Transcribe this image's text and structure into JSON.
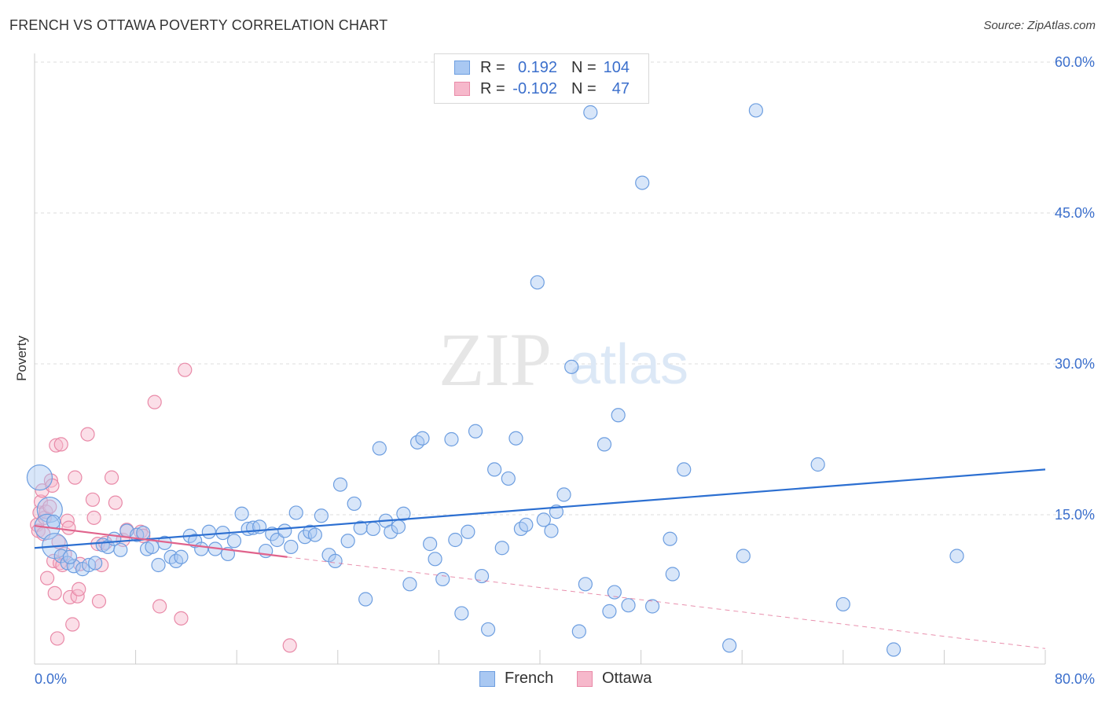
{
  "header": {
    "title": "FRENCH VS OTTAWA POVERTY CORRELATION CHART",
    "source": "Source: ZipAtlas.com"
  },
  "watermark": {
    "zip": "ZIP",
    "atlas": "atlas"
  },
  "legend": {
    "rows": [
      {
        "r_label": "R =",
        "r_value": "0.192",
        "n_label": "N =",
        "n_value": "104"
      },
      {
        "r_label": "R =",
        "r_value": "-0.102",
        "n_label": "N =",
        "n_value": "47"
      }
    ]
  },
  "bottom_legend": {
    "french": "French",
    "ottawa": "Ottawa"
  },
  "colors": {
    "french_fill": "#a9c8f2",
    "french_stroke": "#6d9ee0",
    "french_line": "#2c6fd1",
    "ottawa_fill": "#f6b8cb",
    "ottawa_stroke": "#e98aa8",
    "ottawa_line": "#e0638c",
    "axis_text": "#3b6fcc",
    "grid": "#dedede"
  },
  "chart_data": {
    "type": "scatter",
    "title": "FRENCH VS OTTAWA POVERTY CORRELATION CHART",
    "xlabel": "",
    "ylabel": "Poverty",
    "xlim": [
      0,
      80
    ],
    "ylim": [
      0,
      63
    ],
    "x_tick_labels": [
      "0.0%",
      "80.0%"
    ],
    "y_ticks": [
      15,
      30,
      45,
      60
    ],
    "y_tick_labels": [
      "15.0%",
      "30.0%",
      "45.0%",
      "60.0%"
    ],
    "grid": true,
    "legend_position": "top-center",
    "series": [
      {
        "name": "French",
        "r": 0.192,
        "n": 104,
        "trend": {
          "x": [
            0,
            80
          ],
          "y": [
            11.7,
            19.5
          ]
        },
        "points": [
          {
            "x": 0.4,
            "y": 18.7,
            "big": true
          },
          {
            "x": 1.2,
            "y": 15.5,
            "big": true
          },
          {
            "x": 1.0,
            "y": 13.8,
            "big": true
          },
          {
            "x": 1.6,
            "y": 11.9,
            "big": true
          },
          {
            "x": 1.5,
            "y": 14.3
          },
          {
            "x": 2.1,
            "y": 10.9
          },
          {
            "x": 2.6,
            "y": 10.2
          },
          {
            "x": 3.1,
            "y": 9.9
          },
          {
            "x": 3.8,
            "y": 9.6
          },
          {
            "x": 4.3,
            "y": 10.0
          },
          {
            "x": 4.8,
            "y": 10.2
          },
          {
            "x": 5.4,
            "y": 12.0
          },
          {
            "x": 5.8,
            "y": 11.8
          },
          {
            "x": 6.3,
            "y": 12.6
          },
          {
            "x": 6.8,
            "y": 11.5
          },
          {
            "x": 7.3,
            "y": 13.4
          },
          {
            "x": 8.1,
            "y": 13.0
          },
          {
            "x": 8.6,
            "y": 13.2
          },
          {
            "x": 8.9,
            "y": 11.6
          },
          {
            "x": 9.3,
            "y": 11.8
          },
          {
            "x": 9.8,
            "y": 10.0
          },
          {
            "x": 10.3,
            "y": 12.2
          },
          {
            "x": 10.8,
            "y": 10.8
          },
          {
            "x": 11.2,
            "y": 10.4
          },
          {
            "x": 11.6,
            "y": 10.8
          },
          {
            "x": 12.3,
            "y": 12.9
          },
          {
            "x": 12.7,
            "y": 12.4
          },
          {
            "x": 13.2,
            "y": 11.6
          },
          {
            "x": 13.8,
            "y": 13.3
          },
          {
            "x": 14.3,
            "y": 11.6
          },
          {
            "x": 14.9,
            "y": 13.2
          },
          {
            "x": 15.3,
            "y": 11.1
          },
          {
            "x": 15.8,
            "y": 12.4
          },
          {
            "x": 16.4,
            "y": 15.1
          },
          {
            "x": 16.9,
            "y": 13.6
          },
          {
            "x": 17.3,
            "y": 13.7
          },
          {
            "x": 17.8,
            "y": 13.8
          },
          {
            "x": 18.3,
            "y": 11.4
          },
          {
            "x": 18.8,
            "y": 13.1
          },
          {
            "x": 19.2,
            "y": 12.5
          },
          {
            "x": 19.8,
            "y": 13.4
          },
          {
            "x": 20.3,
            "y": 11.8
          },
          {
            "x": 20.7,
            "y": 15.2
          },
          {
            "x": 21.4,
            "y": 12.8
          },
          {
            "x": 21.8,
            "y": 13.3
          },
          {
            "x": 22.2,
            "y": 13.0
          },
          {
            "x": 22.7,
            "y": 14.9
          },
          {
            "x": 23.3,
            "y": 11.0
          },
          {
            "x": 23.8,
            "y": 10.4
          },
          {
            "x": 24.2,
            "y": 18.0
          },
          {
            "x": 24.8,
            "y": 12.4
          },
          {
            "x": 25.3,
            "y": 16.1
          },
          {
            "x": 25.8,
            "y": 13.7
          },
          {
            "x": 26.2,
            "y": 6.6
          },
          {
            "x": 26.8,
            "y": 13.6
          },
          {
            "x": 27.3,
            "y": 21.6
          },
          {
            "x": 27.8,
            "y": 14.4
          },
          {
            "x": 28.2,
            "y": 13.3
          },
          {
            "x": 28.8,
            "y": 13.8
          },
          {
            "x": 29.2,
            "y": 15.1
          },
          {
            "x": 29.7,
            "y": 8.1
          },
          {
            "x": 30.3,
            "y": 22.2
          },
          {
            "x": 30.7,
            "y": 22.6
          },
          {
            "x": 31.3,
            "y": 12.1
          },
          {
            "x": 31.7,
            "y": 10.6
          },
          {
            "x": 32.3,
            "y": 8.6
          },
          {
            "x": 33.0,
            "y": 22.5
          },
          {
            "x": 33.3,
            "y": 12.5
          },
          {
            "x": 33.8,
            "y": 5.2
          },
          {
            "x": 34.3,
            "y": 13.3
          },
          {
            "x": 34.9,
            "y": 23.3
          },
          {
            "x": 35.4,
            "y": 8.9
          },
          {
            "x": 35.9,
            "y": 3.6
          },
          {
            "x": 36.4,
            "y": 19.5
          },
          {
            "x": 37.0,
            "y": 11.7
          },
          {
            "x": 37.5,
            "y": 18.6
          },
          {
            "x": 38.1,
            "y": 22.6
          },
          {
            "x": 38.5,
            "y": 13.6
          },
          {
            "x": 38.9,
            "y": 14.0
          },
          {
            "x": 39.8,
            "y": 38.1
          },
          {
            "x": 40.3,
            "y": 14.5
          },
          {
            "x": 40.9,
            "y": 13.4
          },
          {
            "x": 41.3,
            "y": 15.3
          },
          {
            "x": 41.9,
            "y": 17.0
          },
          {
            "x": 42.5,
            "y": 29.7
          },
          {
            "x": 43.1,
            "y": 3.4
          },
          {
            "x": 43.6,
            "y": 8.1
          },
          {
            "x": 44.0,
            "y": 55.0
          },
          {
            "x": 45.1,
            "y": 22.0
          },
          {
            "x": 45.5,
            "y": 5.4
          },
          {
            "x": 45.9,
            "y": 7.3
          },
          {
            "x": 46.2,
            "y": 24.9
          },
          {
            "x": 47.0,
            "y": 6.0
          },
          {
            "x": 48.1,
            "y": 48.0
          },
          {
            "x": 48.9,
            "y": 5.9
          },
          {
            "x": 50.3,
            "y": 12.6
          },
          {
            "x": 50.5,
            "y": 9.1
          },
          {
            "x": 51.4,
            "y": 19.5
          },
          {
            "x": 55.0,
            "y": 2.0
          },
          {
            "x": 56.1,
            "y": 10.9
          },
          {
            "x": 57.1,
            "y": 55.2
          },
          {
            "x": 62.0,
            "y": 20.0
          },
          {
            "x": 64.0,
            "y": 6.1
          },
          {
            "x": 68.0,
            "y": 1.6
          },
          {
            "x": 73.0,
            "y": 10.9
          },
          {
            "x": 2.8,
            "y": 10.8
          }
        ]
      },
      {
        "name": "Ottawa",
        "r": -0.102,
        "n": 47,
        "trend": {
          "x": [
            0,
            20
          ],
          "y": [
            13.9,
            10.8
          ]
        },
        "trend_dashed": {
          "x": [
            20,
            80
          ],
          "y": [
            10.8,
            1.7
          ]
        },
        "points": [
          {
            "x": 0.2,
            "y": 14.0
          },
          {
            "x": 0.3,
            "y": 13.4
          },
          {
            "x": 0.4,
            "y": 15.2
          },
          {
            "x": 0.5,
            "y": 16.3
          },
          {
            "x": 0.6,
            "y": 17.4
          },
          {
            "x": 0.7,
            "y": 13.1
          },
          {
            "x": 0.8,
            "y": 14.7
          },
          {
            "x": 0.9,
            "y": 15.3
          },
          {
            "x": 1.0,
            "y": 8.7
          },
          {
            "x": 1.2,
            "y": 15.8
          },
          {
            "x": 1.3,
            "y": 18.4
          },
          {
            "x": 1.4,
            "y": 17.9
          },
          {
            "x": 1.5,
            "y": 10.4
          },
          {
            "x": 1.6,
            "y": 7.2
          },
          {
            "x": 1.7,
            "y": 21.9
          },
          {
            "x": 1.8,
            "y": 2.7
          },
          {
            "x": 1.9,
            "y": 12.3
          },
          {
            "x": 2.0,
            "y": 10.2
          },
          {
            "x": 2.1,
            "y": 22.0
          },
          {
            "x": 2.2,
            "y": 10.0
          },
          {
            "x": 2.4,
            "y": 11.1
          },
          {
            "x": 2.6,
            "y": 14.4
          },
          {
            "x": 2.7,
            "y": 13.7
          },
          {
            "x": 2.8,
            "y": 6.8
          },
          {
            "x": 3.0,
            "y": 4.1
          },
          {
            "x": 3.2,
            "y": 18.7
          },
          {
            "x": 3.4,
            "y": 6.9
          },
          {
            "x": 3.5,
            "y": 7.6
          },
          {
            "x": 3.6,
            "y": 10.1
          },
          {
            "x": 4.2,
            "y": 23.0
          },
          {
            "x": 4.6,
            "y": 16.5
          },
          {
            "x": 4.7,
            "y": 14.7
          },
          {
            "x": 5.0,
            "y": 12.1
          },
          {
            "x": 5.1,
            "y": 6.4
          },
          {
            "x": 5.3,
            "y": 10.0
          },
          {
            "x": 5.6,
            "y": 12.2
          },
          {
            "x": 6.1,
            "y": 18.7
          },
          {
            "x": 6.4,
            "y": 16.2
          },
          {
            "x": 7.0,
            "y": 12.5
          },
          {
            "x": 7.3,
            "y": 13.5
          },
          {
            "x": 8.4,
            "y": 13.3
          },
          {
            "x": 8.6,
            "y": 12.9
          },
          {
            "x": 9.5,
            "y": 26.2
          },
          {
            "x": 9.9,
            "y": 5.9
          },
          {
            "x": 11.6,
            "y": 4.7
          },
          {
            "x": 11.9,
            "y": 29.4
          },
          {
            "x": 20.2,
            "y": 2.0
          }
        ]
      }
    ]
  }
}
